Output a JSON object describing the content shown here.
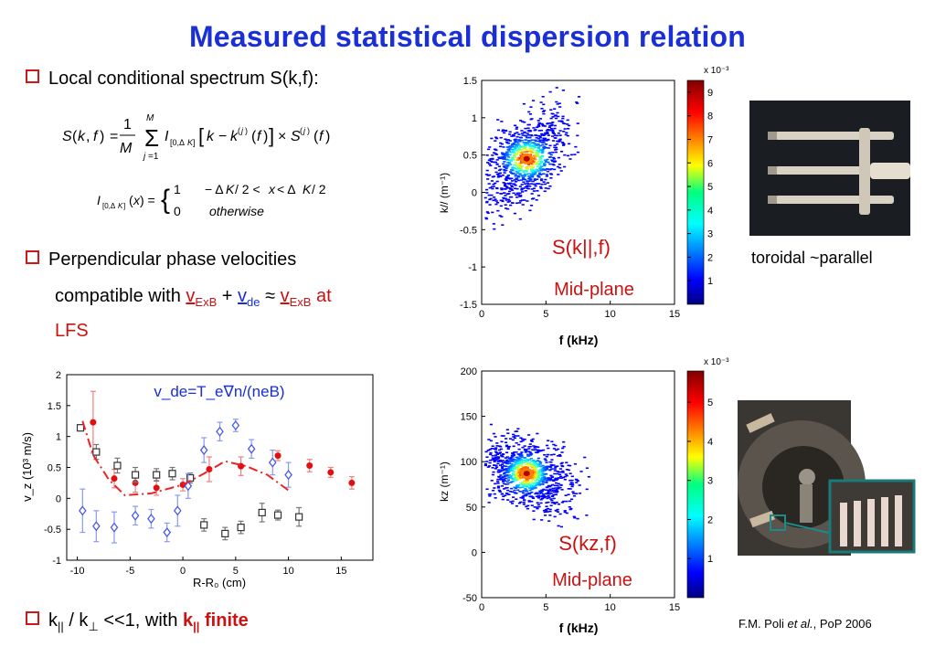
{
  "title": "Measured statistical dispersion relation",
  "bullets": {
    "b1": "Local conditional spectrum S(k,f):",
    "b2_line1": "Perpendicular phase velocities",
    "b2_line2_pre": "compatible with ",
    "b2_v1": "v",
    "b2_v1_sub": "ExB",
    "b2_plus": " + ",
    "b2_v2": "v",
    "b2_v2_sub": "de",
    "b2_approx": " ≈ ",
    "b2_v3": "v",
    "b2_v3_sub": "ExB",
    "b2_at": " at",
    "b2_line3": "LFS",
    "b3_k1": "k",
    "b3_k1_sub": "||",
    "b3_slash": " / k",
    "b3_perp": "⊥",
    "b3_rest": " <<1, with ",
    "b3_k2": "k",
    "b3_k2_sub": "||",
    "b3_finite": " finite"
  },
  "equations": {
    "eq1": "S(k, f) = (1/M) Σ_{j=1}^{M} I_[0,ΔK][k − k^(j)(f)] × S^(j)(f)",
    "eq2_lhs": "I[0,ΔK](x) =",
    "eq2_case1": "1      − ΔK/2 < x < ΔK/2",
    "eq2_case2": "0      otherwise"
  },
  "vz_plot": {
    "annotation": "v_de=T_e∇n/(neB)",
    "xlabel": "R-R₀ (cm)",
    "ylabel": "v_z (10³ m/s)"
  },
  "spec_top": {
    "label": "S(k||,f)",
    "sublabel": "Mid-plane",
    "ylabel": "k// (m⁻¹)",
    "xlabel": "f (kHz)",
    "scale": "x 10⁻³"
  },
  "spec_bottom": {
    "label": "S(kz,f)",
    "sublabel": "Mid-plane",
    "ylabel": "kz (m⁻¹)",
    "xlabel": "f (kHz)",
    "scale": "x 10⁻³"
  },
  "photo_caption": "toroidal ~parallel",
  "citation_pre": "F.M. Poli ",
  "citation_etal": "et al.",
  "citation_post": ", PoP 2006",
  "chart_data": [
    {
      "type": "scatter",
      "xlabel": "R-R0 (cm)",
      "ylabel": "vz (10^3 m/s)",
      "xlim": [
        -11,
        18
      ],
      "ylim": [
        -1,
        2
      ],
      "xticks": [
        -10,
        -5,
        0,
        5,
        10,
        15
      ],
      "yticks": [
        -1,
        -0.5,
        0,
        0.5,
        1,
        1.5,
        2
      ],
      "series": [
        {
          "marker": "red-star",
          "points": [
            [
              -8.5,
              1.23
            ],
            [
              -6.5,
              0.32
            ],
            [
              -4.5,
              0.25
            ],
            [
              -2.5,
              0.17
            ],
            [
              0,
              0.22
            ],
            [
              2.5,
              0.47
            ],
            [
              5.5,
              0.52
            ],
            [
              9,
              0.69
            ],
            [
              12,
              0.53
            ],
            [
              14,
              0.42
            ],
            [
              16,
              0.25
            ]
          ],
          "errors": [
            0.5,
            0.15,
            0.15,
            0.12,
            0.1,
            0.2,
            0.15,
            0.08,
            0.1,
            0.08,
            0.1
          ]
        },
        {
          "marker": "black-square",
          "points": [
            [
              -9.7,
              1.14
            ],
            [
              -8.2,
              0.75
            ],
            [
              -6.2,
              0.53
            ],
            [
              -4.5,
              0.38
            ],
            [
              -2.5,
              0.38
            ],
            [
              -1,
              0.4
            ],
            [
              0.7,
              0.33
            ],
            [
              2,
              -0.43
            ],
            [
              4,
              -0.57
            ],
            [
              5.5,
              -0.47
            ],
            [
              7.5,
              -0.23
            ],
            [
              9,
              -0.27
            ],
            [
              11,
              -0.3
            ]
          ],
          "errors": [
            0.04,
            0.12,
            0.12,
            0.12,
            0.1,
            0.1,
            0.08,
            0.1,
            0.1,
            0.1,
            0.15,
            0.08,
            0.15
          ]
        },
        {
          "marker": "blue-diamond",
          "points": [
            [
              -9.5,
              -0.2
            ],
            [
              -8.2,
              -0.45
            ],
            [
              -6.5,
              -0.47
            ],
            [
              -4.5,
              -0.28
            ],
            [
              -3,
              -0.33
            ],
            [
              -1.5,
              -0.55
            ],
            [
              -0.5,
              -0.2
            ],
            [
              0.5,
              0.2
            ],
            [
              2,
              0.78
            ],
            [
              3.5,
              1.08
            ],
            [
              5,
              1.18
            ],
            [
              6.5,
              0.8
            ],
            [
              8.5,
              0.58
            ],
            [
              10,
              0.38
            ]
          ],
          "errors": [
            0.35,
            0.25,
            0.25,
            0.15,
            0.15,
            0.15,
            0.25,
            0.2,
            0.2,
            0.15,
            0.1,
            0.15,
            0.2,
            0.2
          ]
        },
        {
          "marker": "red-dashed-line",
          "points": [
            [
              -9.5,
              1.25
            ],
            [
              -8.5,
              0.7
            ],
            [
              -7,
              0.3
            ],
            [
              -5.5,
              0.05
            ],
            [
              -3,
              0.08
            ],
            [
              -1.5,
              0.15
            ],
            [
              0,
              0.22
            ],
            [
              2,
              0.4
            ],
            [
              4,
              0.6
            ],
            [
              6,
              0.52
            ],
            [
              8,
              0.38
            ],
            [
              10,
              0.13
            ]
          ]
        }
      ]
    },
    {
      "type": "heatmap",
      "title": "S(k||,f)",
      "xlabel": "f (kHz)",
      "ylabel": "k// (m^-1)",
      "xlim": [
        0,
        15
      ],
      "ylim": [
        -1.5,
        1.5
      ],
      "xticks": [
        0,
        5,
        10,
        15
      ],
      "yticks": [
        -1.5,
        -1,
        -0.5,
        0,
        0.5,
        1,
        1.5
      ],
      "peak": {
        "f": 3.5,
        "k": 0.45
      },
      "colorbar": {
        "scale": "x 10^-3",
        "ticks": [
          1,
          2,
          3,
          4,
          5,
          6,
          7,
          8,
          9
        ],
        "range": [
          0,
          9.5
        ]
      }
    },
    {
      "type": "heatmap",
      "title": "S(kz,f)",
      "xlabel": "f (kHz)",
      "ylabel": "kz (m^-1)",
      "xlim": [
        0,
        15
      ],
      "ylim": [
        -50,
        200
      ],
      "xticks": [
        0,
        5,
        10,
        15
      ],
      "yticks": [
        -50,
        0,
        50,
        100,
        150,
        200
      ],
      "peak": {
        "f": 3.5,
        "k": 87
      },
      "colorbar": {
        "scale": "x 10^-3",
        "ticks": [
          1,
          2,
          3,
          4,
          5
        ],
        "range": [
          0,
          5.8
        ]
      }
    }
  ],
  "colors": {
    "title": "#1a2fd6",
    "accent_red": "#cc1111",
    "bullet_box": "#d01818"
  }
}
